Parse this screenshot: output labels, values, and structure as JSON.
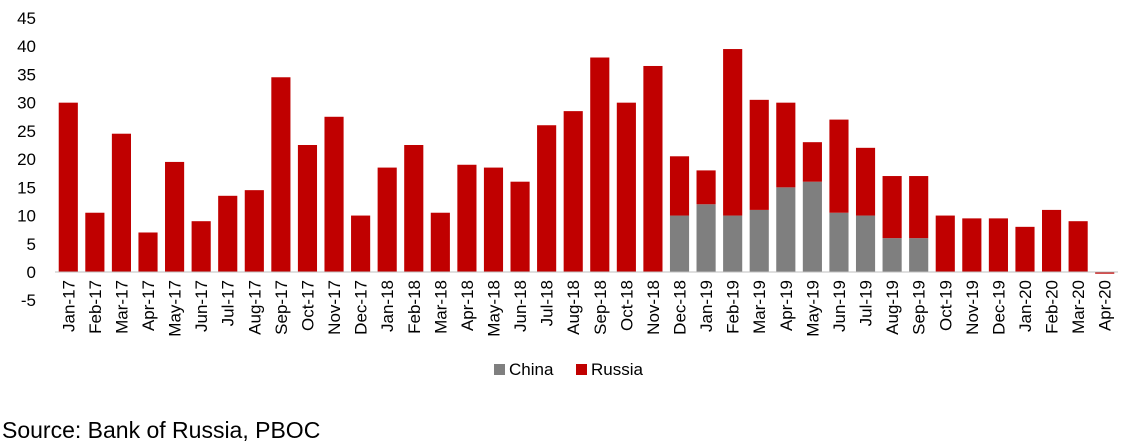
{
  "chart_data": {
    "type": "bar",
    "stacked": true,
    "categories": [
      "Jan-17",
      "Feb-17",
      "Mar-17",
      "Apr-17",
      "May-17",
      "Jun-17",
      "Jul-17",
      "Aug-17",
      "Sep-17",
      "Oct-17",
      "Nov-17",
      "Dec-17",
      "Jan-18",
      "Feb-18",
      "Mar-18",
      "Apr-18",
      "May-18",
      "Jun-18",
      "Jul-18",
      "Aug-18",
      "Sep-18",
      "Oct-18",
      "Nov-18",
      "Dec-18",
      "Jan-19",
      "Feb-19",
      "Mar-19",
      "Apr-19",
      "May-19",
      "Jun-19",
      "Jul-19",
      "Aug-19",
      "Sep-19",
      "Oct-19",
      "Nov-19",
      "Dec-19",
      "Jan-20",
      "Feb-20",
      "Mar-20",
      "Apr-20"
    ],
    "series": [
      {
        "name": "China",
        "color": "#7f7f7f",
        "values": [
          0,
          0,
          0,
          0,
          0,
          0,
          0,
          0,
          0,
          0,
          0,
          0,
          0,
          0,
          0,
          0,
          0,
          0,
          0,
          0,
          0,
          0,
          0,
          10,
          12,
          10,
          11,
          15,
          16,
          10.5,
          10,
          6,
          6,
          0,
          0,
          0,
          0,
          0,
          0,
          0
        ]
      },
      {
        "name": "Russia",
        "color": "#c00000",
        "values": [
          30,
          10.5,
          24.5,
          7,
          19.5,
          9,
          13.5,
          14.5,
          34.5,
          22.5,
          27.5,
          10,
          18.5,
          22.5,
          10.5,
          19,
          18.5,
          16,
          26,
          28.5,
          38,
          30,
          36.5,
          10.5,
          6,
          29.5,
          19.5,
          15,
          7,
          16.5,
          12,
          11,
          11,
          10,
          9.5,
          9.5,
          8,
          11,
          9,
          -0.3
        ]
      }
    ],
    "ylim": [
      -5,
      45
    ],
    "yticks": [
      "-5",
      "0",
      "5",
      "10",
      "15",
      "20",
      "25",
      "30",
      "35",
      "40",
      "45"
    ],
    "legend_position": "bottom",
    "grid": false
  },
  "source": "Source: Bank of Russia, PBOC"
}
